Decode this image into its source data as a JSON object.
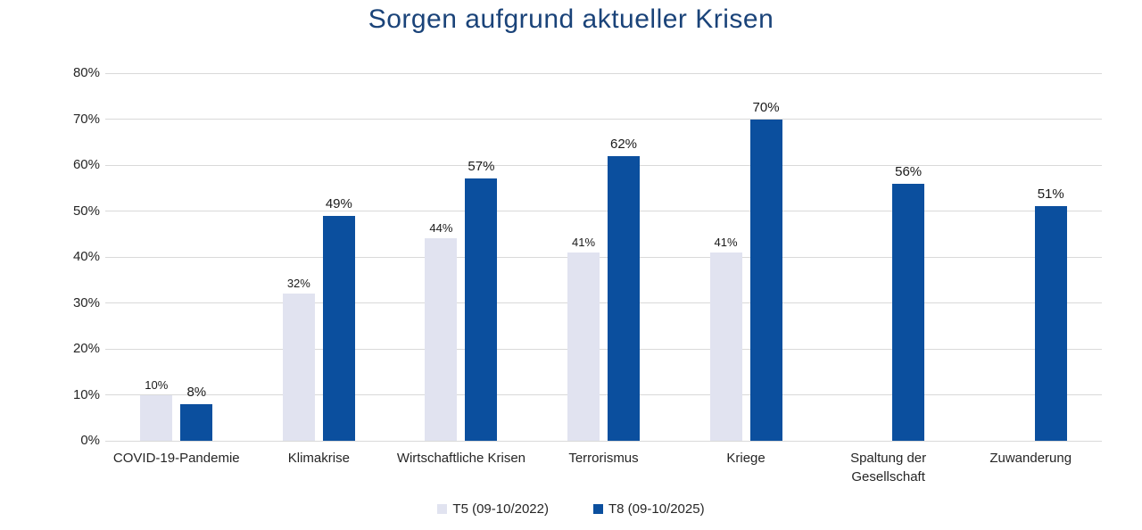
{
  "title": "Sorgen aufgrund aktueller Krisen",
  "colors": {
    "title": "#1A4379",
    "series_t5": "#E1E3F0",
    "series_t8": "#0B4F9E",
    "gridline": "#D9D9D9",
    "tick_text": "#262626",
    "value_label_text": "#1A1A1A"
  },
  "chart_data": {
    "type": "bar",
    "title": "Sorgen aufgrund aktueller Krisen",
    "categories": [
      "COVID-19-Pandemie",
      "Klimakrise",
      "Wirtschaftliche Krisen",
      "Terrorismus",
      "Kriege",
      "Spaltung der Gesellschaft",
      "Zuwanderung"
    ],
    "series": [
      {
        "name": "T5 (09-10/2022)",
        "color_key": "series_t5",
        "values": [
          10,
          32,
          44,
          41,
          41,
          null,
          null
        ]
      },
      {
        "name": "T8 (09-10/2025)",
        "color_key": "series_t8",
        "values": [
          8,
          49,
          57,
          62,
          70,
          56,
          51
        ]
      }
    ],
    "value_labels": [
      [
        "10%",
        "32%",
        "44%",
        "41%",
        "41%",
        null,
        null
      ],
      [
        "8%",
        "49%",
        "57%",
        "62%",
        "70%",
        "56%",
        "51%"
      ]
    ],
    "xlabel": "",
    "ylabel": "",
    "ylim": [
      0,
      80
    ],
    "ytick_step": 10,
    "ytick_labels": [
      "0%",
      "10%",
      "20%",
      "30%",
      "40%",
      "50%",
      "60%",
      "70%",
      "80%"
    ],
    "grid": true,
    "legend_position": "bottom"
  }
}
